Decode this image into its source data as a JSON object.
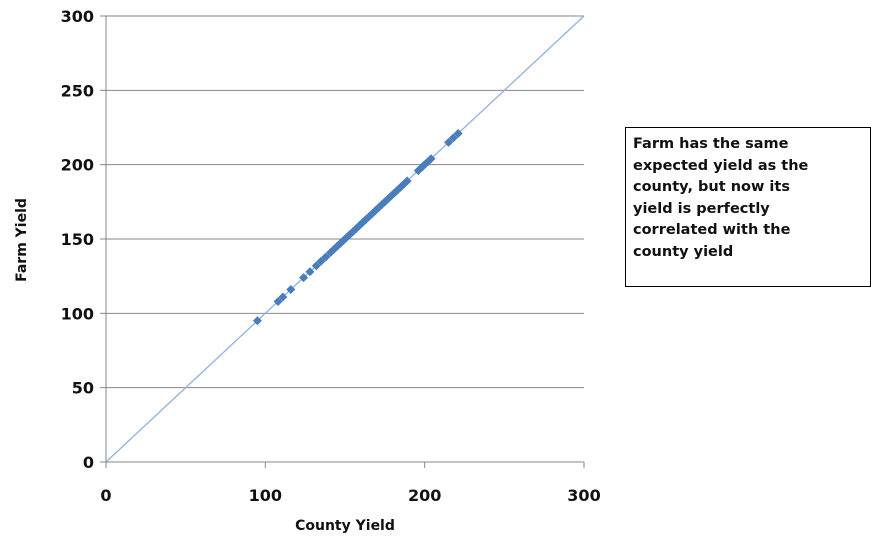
{
  "chart_data": {
    "type": "scatter",
    "xlabel": "County Yield",
    "ylabel": "Farm Yield",
    "xlim": [
      0,
      300
    ],
    "ylim": [
      0,
      300
    ],
    "x_ticks": [
      0,
      100,
      200,
      300
    ],
    "y_ticks": [
      0,
      50,
      100,
      150,
      200,
      250,
      300
    ],
    "grid": "horizontal",
    "reference_line": {
      "x": [
        0,
        300
      ],
      "y": [
        0,
        300
      ]
    },
    "series": [
      {
        "x": [
          95,
          108,
          111,
          116,
          124,
          128,
          132,
          135,
          138,
          141,
          143,
          145,
          147,
          149,
          151,
          153,
          155,
          157,
          159,
          161,
          163,
          165,
          167,
          169,
          171,
          173,
          175,
          177,
          179,
          181,
          183,
          185,
          187,
          189,
          196,
          198,
          200,
          202,
          204,
          215,
          218,
          221
        ],
        "y": [
          95,
          108,
          111,
          116,
          124,
          128,
          132,
          135,
          138,
          141,
          143,
          145,
          147,
          149,
          151,
          153,
          155,
          157,
          159,
          161,
          163,
          165,
          167,
          169,
          171,
          173,
          175,
          177,
          179,
          181,
          183,
          185,
          187,
          189,
          196,
          198,
          200,
          202,
          204,
          215,
          218,
          221
        ]
      }
    ],
    "colors": {
      "marker": "#4a7ebb",
      "line": "#8fb1dc",
      "grid": "#878787"
    },
    "annotation": "Farm has the same expected yield as the county, but now its yield is perfectly correlated with the county yield"
  }
}
